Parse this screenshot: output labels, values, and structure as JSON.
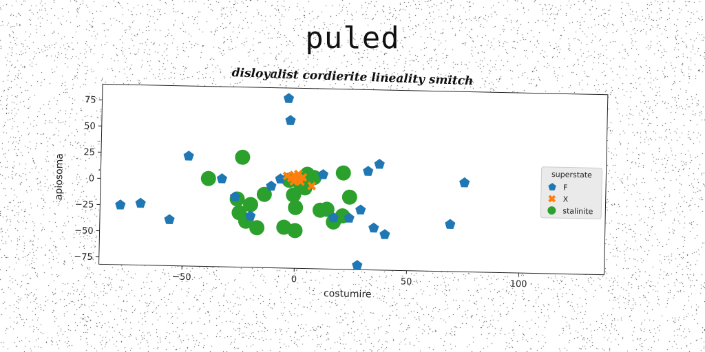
{
  "title": "puled",
  "chart_data": {
    "type": "scatter",
    "title": "disloyalist cordierite lineality smitch",
    "xlabel": "costumire",
    "ylabel": "apiosoma",
    "xlim": [
      -87,
      138
    ],
    "ylim": [
      -82,
      90
    ],
    "xticks": [
      -50,
      0,
      50,
      100
    ],
    "yticks": [
      -75,
      -50,
      -25,
      0,
      25,
      50,
      75
    ],
    "grid": false,
    "legend": {
      "title": "superstate",
      "placement": "right"
    },
    "series": [
      {
        "name": "F",
        "marker": "pentagon",
        "color": "#1f77b4",
        "points": [
          [
            -4,
            80
          ],
          [
            -3,
            59
          ],
          [
            -48,
            23
          ],
          [
            -33,
            2
          ],
          [
            -11,
            -4
          ],
          [
            -27,
            -15
          ],
          [
            -20,
            -33
          ],
          [
            -56,
            -38
          ],
          [
            -69,
            -23
          ],
          [
            -78,
            -25
          ],
          [
            12,
            8
          ],
          [
            32,
            12
          ],
          [
            37,
            19
          ],
          [
            75,
            3
          ],
          [
            69,
            -37
          ],
          [
            35,
            -42
          ],
          [
            40,
            -48
          ],
          [
            29,
            -25
          ],
          [
            24,
            -33
          ],
          [
            17,
            -33
          ],
          [
            28,
            -78
          ],
          [
            -7,
            3
          ]
        ]
      },
      {
        "name": "X",
        "marker": "x",
        "color": "#ff7f0e",
        "points": [
          [
            -4,
            6
          ],
          [
            -2,
            4
          ],
          [
            0,
            5
          ],
          [
            1,
            8
          ],
          [
            2,
            1
          ],
          [
            -1,
            1
          ],
          [
            3,
            5
          ],
          [
            1,
            3
          ],
          [
            7,
            -3
          ],
          [
            -1,
            7
          ]
        ]
      },
      {
        "name": "stalinite",
        "marker": "circle",
        "color": "#2ca02c",
        "points": [
          [
            -24,
            23
          ],
          [
            -39,
            2
          ],
          [
            -26,
            -17
          ],
          [
            -25,
            -30
          ],
          [
            -20,
            -22
          ],
          [
            -22,
            -38
          ],
          [
            -17,
            -44
          ],
          [
            -14,
            -12
          ],
          [
            -5,
            -43
          ],
          [
            0,
            -46
          ],
          [
            0,
            -24
          ],
          [
            -1,
            -12
          ],
          [
            4,
            -5
          ],
          [
            4,
            1
          ],
          [
            5,
            8
          ],
          [
            8,
            5
          ],
          [
            11,
            -26
          ],
          [
            14,
            -25
          ],
          [
            17,
            -37
          ],
          [
            21,
            10
          ],
          [
            21,
            -31
          ],
          [
            24,
            -13
          ],
          [
            2,
            -1
          ],
          [
            -3,
            2
          ]
        ]
      }
    ]
  }
}
